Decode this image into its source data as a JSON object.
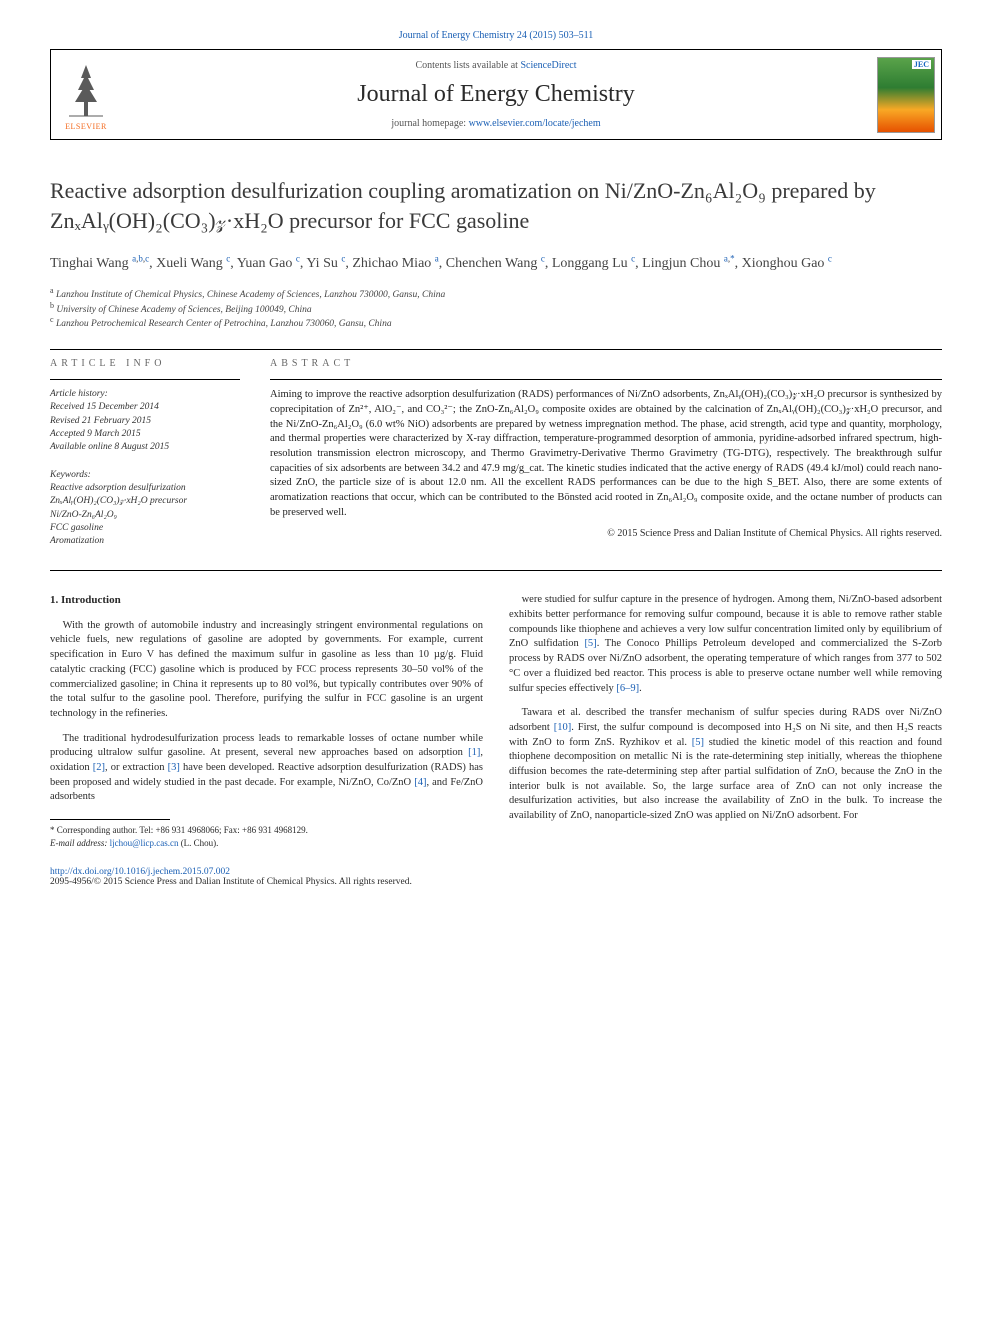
{
  "top_link": {
    "journal_ref": "Journal of Energy Chemistry 24 (2015) 503–511"
  },
  "header": {
    "contents_available": "Contents lists available at ",
    "science_direct": "ScienceDirect",
    "journal_title": "Journal of Energy Chemistry",
    "homepage_prefix": "journal homepage: ",
    "homepage_url": "www.elsevier.com/locate/jechem",
    "elsevier_label": "ELSEVIER",
    "cover_label": "JEC"
  },
  "title": "Reactive adsorption desulfurization coupling aromatization on Ni/ZnO-Zn₆Al₂O₉ prepared by ZnₓAlᵧ(OH)₂(CO₃)𝓏·xH₂O precursor for FCC gasoline",
  "authors_html": "Tinghai Wang <sup><a>a</a>,<a>b</a>,<a>c</a></sup>, Xueli Wang <sup><a>c</a></sup>, Yuan Gao <sup><a>c</a></sup>, Yi Su <sup><a>c</a></sup>, Zhichao Miao <sup><a>a</a></sup>, Chenchen Wang <sup><a>c</a></sup>, Longgang Lu <sup><a>c</a></sup>, Lingjun Chou <sup><a>a</a>,<a>*</a></sup>, Xionghou Gao <sup><a>c</a></sup>",
  "affiliations": [
    {
      "sup": "a",
      "text": "Lanzhou Institute of Chemical Physics, Chinese Academy of Sciences, Lanzhou 730000, Gansu, China"
    },
    {
      "sup": "b",
      "text": "University of Chinese Academy of Sciences, Beijing 100049, China"
    },
    {
      "sup": "c",
      "text": "Lanzhou Petrochemical Research Center of Petrochina, Lanzhou 730060, Gansu, China"
    }
  ],
  "article_info": {
    "heading": "ARTICLE INFO",
    "history_label": "Article history:",
    "history": [
      "Received 15 December 2014",
      "Revised 21 February 2015",
      "Accepted 9 March 2015",
      "Available online 8 August 2015"
    ],
    "keywords_label": "Keywords:",
    "keywords": [
      "Reactive adsorption desulfurization",
      "ZnₓAlᵧ(OH)₂(CO₃)𝓏·xH₂O precursor",
      "Ni/ZnO-Zn₆Al₂O₉",
      "FCC gasoline",
      "Aromatization"
    ]
  },
  "abstract": {
    "heading": "ABSTRACT",
    "text": "Aiming to improve the reactive adsorption desulfurization (RADS) performances of Ni/ZnO adsorbents, ZnₓAlᵧ(OH)₂(CO₃)𝓏·xH₂O precursor is synthesized by coprecipitation of Zn²⁺, AlO₂⁻, and CO₃²⁻; the ZnO-Zn₆Al₂O₉ composite oxides are obtained by the calcination of ZnₓAlᵧ(OH)₂(CO₃)𝓏·xH₂O precursor, and the Ni/ZnO-Zn₆Al₂O₉ (6.0 wt% NiO) adsorbents are prepared by wetness impregnation method. The phase, acid strength, acid type and quantity, morphology, and thermal properties were characterized by X-ray diffraction, temperature-programmed desorption of ammonia, pyridine-adsorbed infrared spectrum, high-resolution transmission electron microscopy, and Thermo Gravimetry-Derivative Thermo Gravimetry (TG-DTG), respectively. The breakthrough sulfur capacities of six adsorbents are between 34.2 and 47.9 mg/g_cat. The kinetic studies indicated that the active energy of RADS (49.4 kJ/mol) could reach nano-sized ZnO, the particle size of is about 12.0 nm. All the excellent RADS performances can be due to the high S_BET. Also, there are some extents of aromatization reactions that occur, which can be contributed to the Bönsted acid rooted in Zn₆Al₂O₉ composite oxide, and the octane number of products can be preserved well.",
    "copyright": "© 2015 Science Press and Dalian Institute of Chemical Physics. All rights reserved."
  },
  "body": {
    "section_heading": "1. Introduction",
    "p1": "With the growth of automobile industry and increasingly stringent environmental regulations on vehicle fuels, new regulations of gasoline are adopted by governments. For example, current specification in Euro V has defined the maximum sulfur in gasoline as less than 10 µg/g. Fluid catalytic cracking (FCC) gasoline which is produced by FCC process represents 30–50 vol% of the commercialized gasoline; in China it represents up to 80 vol%, but typically contributes over 90% of the total sulfur to the gasoline pool. Therefore, purifying the sulfur in FCC gasoline is an urgent technology in the refineries.",
    "p2_pre": "The traditional hydrodesulfurization process leads to remarkable losses of octane number while producing ultralow sulfur gasoline. At present, several new approaches based on adsorption ",
    "p2_ref1": "[1]",
    "p2_mid1": ", oxidation ",
    "p2_ref2": "[2]",
    "p2_mid2": ", or extraction ",
    "p2_ref3": "[3]",
    "p2_mid3": " have been developed. Reactive adsorption desulfurization (RADS) has been proposed and widely studied in the past decade. For example, Ni/ZnO, Co/ZnO ",
    "p2_ref4": "[4]",
    "p2_post": ", and Fe/ZnO adsorbents",
    "p3_pre": "were studied for sulfur capture in the presence of hydrogen. Among them, Ni/ZnO-based adsorbent exhibits better performance for removing sulfur compound, because it is able to remove rather stable compounds like thiophene and achieves a very low sulfur concentration limited only by equilibrium of ZnO sulfidation ",
    "p3_ref5": "[5]",
    "p3_mid": ". The Conoco Phillips Petroleum developed and commercialized the S-Zorb process by RADS over Ni/ZnO adsorbent, the operating temperature of which ranges from 377 to 502 °C over a fluidized bed reactor. This process is able to preserve octane number well while removing sulfur species effectively ",
    "p3_ref69": "[6–9]",
    "p3_post": ".",
    "p4_pre": "Tawara et al. described the transfer mechanism of sulfur species during RADS over Ni/ZnO adsorbent ",
    "p4_ref10": "[10]",
    "p4_mid1": ". First, the sulfur compound is decomposed into H₂S on Ni site, and then H₂S reacts with ZnO to form ZnS. Ryzhikov et al. ",
    "p4_ref5b": "[5]",
    "p4_post": " studied the kinetic model of this reaction and found thiophene decomposition on metallic Ni is the rate-determining step initially, whereas the thiophene diffusion becomes the rate-determining step after partial sulfidation of ZnO, because the ZnO in the interior bulk is not available. So, the large surface area of ZnO can not only increase the desulfurization activities, but also increase the availability of ZnO in the bulk. To increase the availability of ZnO, nanoparticle-sized ZnO was applied on Ni/ZnO adsorbent. For"
  },
  "footnote": {
    "corr_label": "* Corresponding author. Tel: +86 931 4968066; Fax: +86 931 4968129.",
    "email_label": "E-mail address: ",
    "email": "ljchou@licp.cas.cn",
    "email_person": " (L. Chou)."
  },
  "bottom": {
    "doi_url": "http://dx.doi.org/10.1016/j.jechem.2015.07.002",
    "issn_line": "2095-4956/© 2015 Science Press and Dalian Institute of Chemical Physics. All rights reserved."
  },
  "colors": {
    "link": "#1a5fb4",
    "elsevier_orange": "#f36b21",
    "text": "#2a2a2a"
  }
}
